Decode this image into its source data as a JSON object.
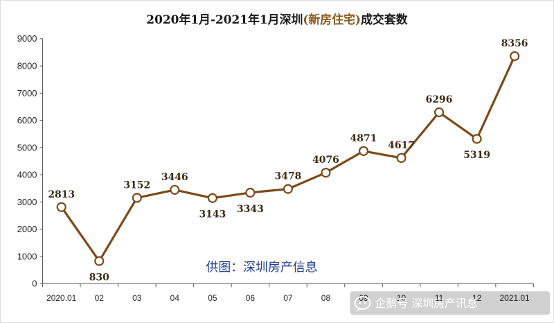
{
  "title": {
    "prefix": "2020年1月-2021年1月深圳",
    "highlight": "(新房住宅)",
    "suffix": "成交套数"
  },
  "credit": "供图：深圳房产信息",
  "watermark": {
    "icon": "chat-bubble-icon",
    "text": "企鹅号 深圳房产讯息"
  },
  "colors": {
    "line": "#7a4a1a",
    "marker_fill": "#ffffff",
    "marker_stroke": "#7a4a1a",
    "axis": "#555555",
    "title_highlight": "#8a5a1c",
    "credit": "#1f3f8f"
  },
  "chart_data": {
    "type": "line",
    "title": "2020年1月-2021年1月深圳(新房住宅)成交套数",
    "categories": [
      "2020.01",
      "02",
      "03",
      "04",
      "05",
      "06",
      "07",
      "08",
      "09",
      "10",
      "11",
      "12",
      "2021.01"
    ],
    "series": [
      {
        "values": [
          2813,
          830,
          3152,
          3446,
          3143,
          3343,
          3478,
          4076,
          4871,
          4617,
          6296,
          5319,
          8356
        ]
      }
    ],
    "data_labels": [
      "2813",
      "830",
      "3152",
      "3446",
      "3143",
      "3343",
      "3478",
      "4076",
      "4871",
      "4617",
      "6296",
      "5319",
      "8356"
    ],
    "yticks": [
      "0",
      "1000",
      "2000",
      "3000",
      "4000",
      "5000",
      "6000",
      "7000",
      "8000",
      "9000"
    ],
    "ylim": [
      0,
      9000
    ],
    "grid": false,
    "legend": "none"
  }
}
